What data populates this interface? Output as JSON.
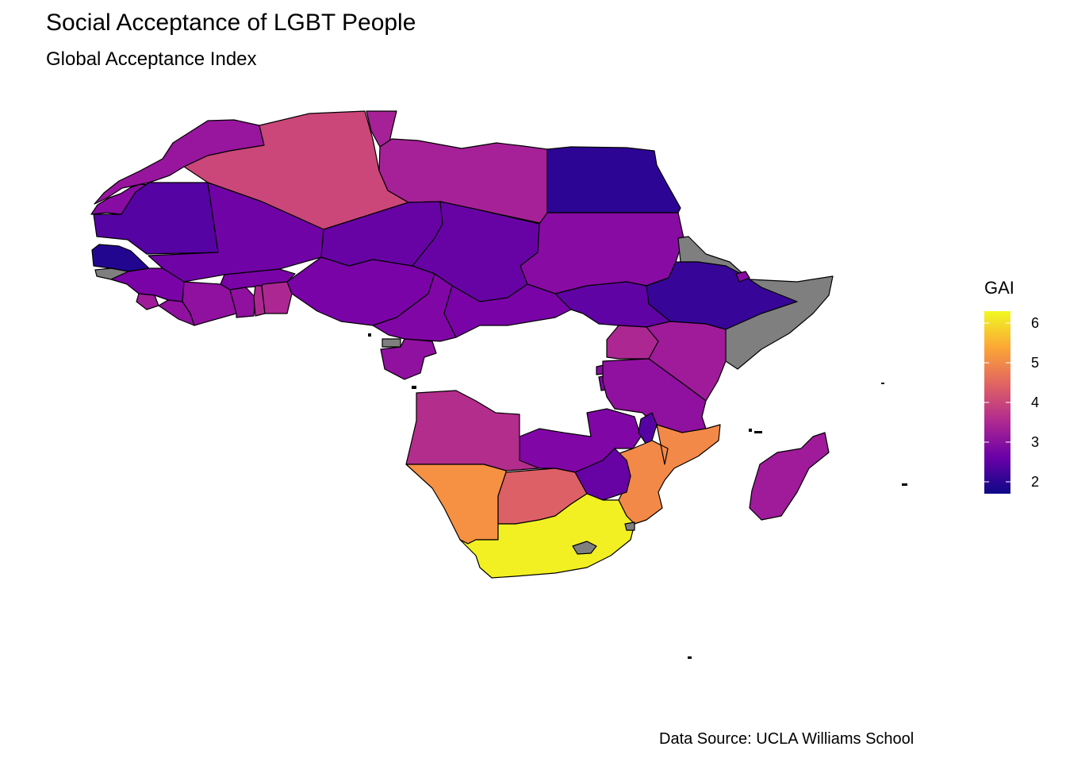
{
  "title": "Social Acceptance of LGBT People",
  "subtitle": "Global Acceptance Index",
  "caption": "Data Source: UCLA Williams School",
  "legend": {
    "title": "GAI",
    "min": 1.7,
    "max": 6.3,
    "ticks": [
      "2",
      "3",
      "4",
      "5",
      "6"
    ],
    "stops": [
      "#0d0887",
      "#6a00a8",
      "#b12a90",
      "#e16462",
      "#fca636",
      "#f0f921"
    ],
    "missing_color": "#7f7f7f"
  },
  "countries": [
    {
      "name": "Morocco",
      "gai": 3.2
    },
    {
      "name": "Western Sahara",
      "gai": 3.0
    },
    {
      "name": "Algeria",
      "gai": 4.0
    },
    {
      "name": "Tunisia",
      "gai": 3.4
    },
    {
      "name": "Libya",
      "gai": 3.4
    },
    {
      "name": "Egypt",
      "gai": 2.0
    },
    {
      "name": "Mauritania",
      "gai": 2.4
    },
    {
      "name": "Mali",
      "gai": 2.7
    },
    {
      "name": "Niger",
      "gai": 2.6
    },
    {
      "name": "Chad",
      "gai": 2.6
    },
    {
      "name": "Sudan",
      "gai": 3.0
    },
    {
      "name": "Eritrea",
      "gai": null
    },
    {
      "name": "Ethiopia",
      "gai": 2.1
    },
    {
      "name": "Djibouti",
      "gai": 3.0
    },
    {
      "name": "Somalia",
      "gai": null
    },
    {
      "name": "Senegal",
      "gai": 1.9
    },
    {
      "name": "Guinea-Bissau",
      "gai": null
    },
    {
      "name": "Guinea",
      "gai": 2.8
    },
    {
      "name": "Sierra Leone",
      "gai": 3.3
    },
    {
      "name": "Liberia",
      "gai": 3.1
    },
    {
      "name": "Burkina Faso",
      "gai": 2.8
    },
    {
      "name": "Côte d'Ivoire",
      "gai": 3.1
    },
    {
      "name": "Ghana",
      "gai": 3.1
    },
    {
      "name": "Togo",
      "gai": 3.5
    },
    {
      "name": "Benin",
      "gai": 3.5
    },
    {
      "name": "Nigeria",
      "gai": 2.8
    },
    {
      "name": "Cameroon",
      "gai": 2.9
    },
    {
      "name": "Central African Republic",
      "gai": 2.8
    },
    {
      "name": "South Sudan",
      "gai": 2.5
    },
    {
      "name": "Equatorial Guinea",
      "gai": null
    },
    {
      "name": "Gabon",
      "gai": 3.1
    },
    {
      "name": "Uganda",
      "gai": 3.5
    },
    {
      "name": "Kenya",
      "gai": 3.3
    },
    {
      "name": "Rwanda",
      "gai": 3.0
    },
    {
      "name": "Burundi",
      "gai": 2.9
    },
    {
      "name": "Tanzania",
      "gai": 3.1
    },
    {
      "name": "Angola",
      "gai": 3.6
    },
    {
      "name": "Zambia",
      "gai": 2.9
    },
    {
      "name": "Malawi",
      "gai": 2.4
    },
    {
      "name": "Mozambique",
      "gai": 5.0
    },
    {
      "name": "Zimbabwe",
      "gai": 2.6
    },
    {
      "name": "Namibia",
      "gai": 5.1
    },
    {
      "name": "Botswana",
      "gai": 4.4
    },
    {
      "name": "South Africa",
      "gai": 6.2
    },
    {
      "name": "Lesotho",
      "gai": null
    },
    {
      "name": "Eswatini",
      "gai": null
    },
    {
      "name": "Madagascar",
      "gai": 3.3
    }
  ]
}
